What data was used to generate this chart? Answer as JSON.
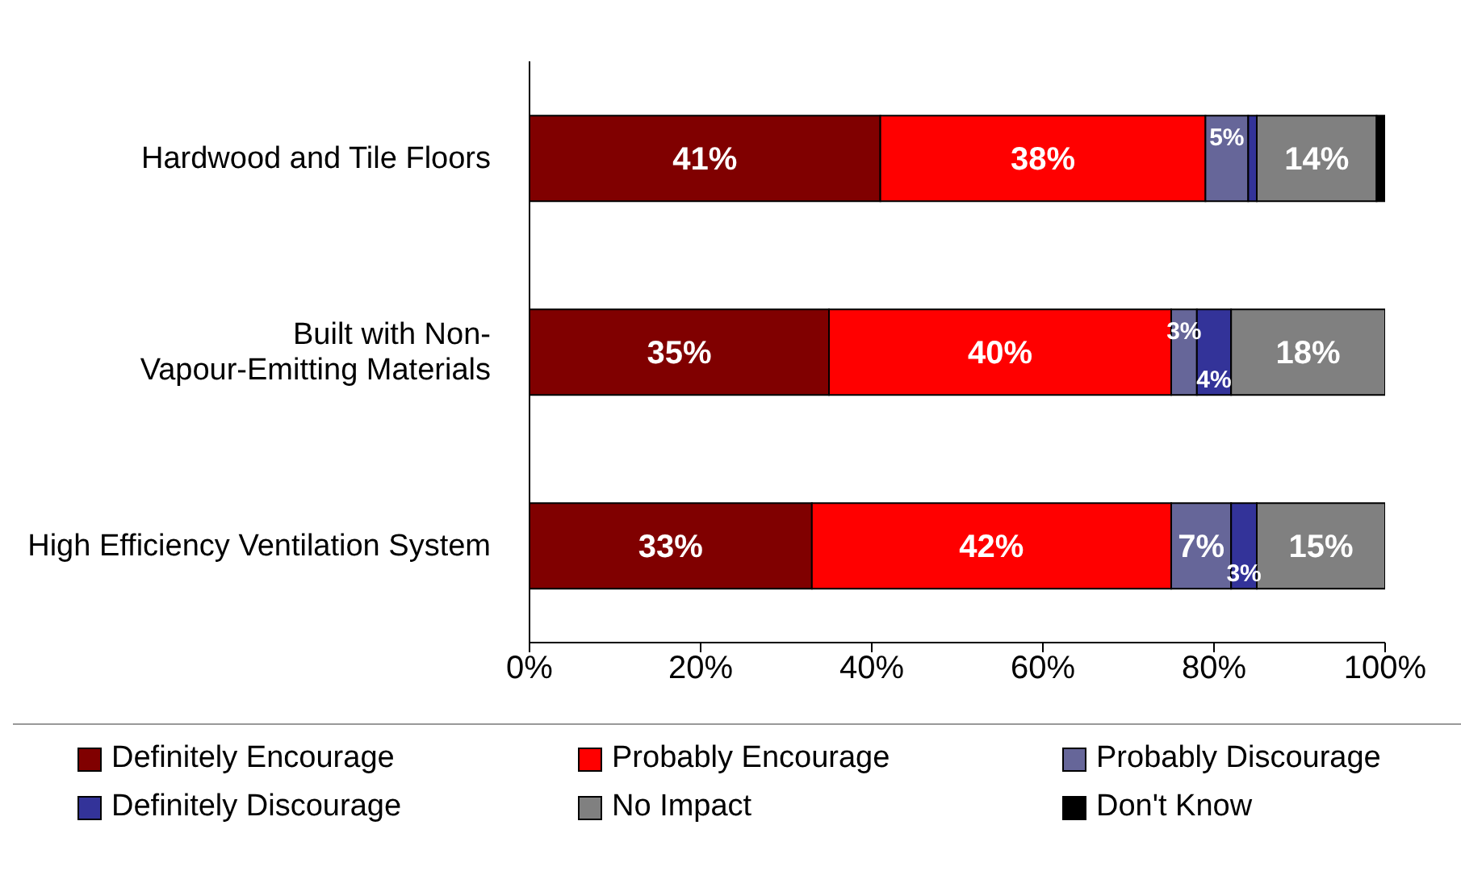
{
  "chart_data": {
    "type": "bar",
    "orientation": "horizontal",
    "stacked": true,
    "categories": [
      "Hardwood and Tile Floors",
      "Built with Non-Vapour-Emitting Materials",
      "High Efficiency Ventilation System"
    ],
    "series": [
      {
        "name": "Definitely Encourage",
        "color": "#800000",
        "values": [
          41,
          35,
          33
        ],
        "value_labels": [
          "41%",
          "35%",
          "33%"
        ]
      },
      {
        "name": "Probably Encourage",
        "color": "#ff0000",
        "values": [
          38,
          40,
          42
        ],
        "value_labels": [
          "38%",
          "40%",
          "42%"
        ]
      },
      {
        "name": "Probably Discourage",
        "color": "#666699",
        "values": [
          5,
          3,
          7
        ],
        "value_labels": [
          "5%",
          "3%",
          "7%"
        ]
      },
      {
        "name": "Definitely Discourage",
        "color": "#333399",
        "values": [
          1,
          4,
          3
        ],
        "value_labels": [
          null,
          "4%",
          "3%"
        ]
      },
      {
        "name": "No Impact",
        "color": "#808080",
        "values": [
          14,
          18,
          15
        ],
        "value_labels": [
          "14%",
          "18%",
          "15%"
        ]
      },
      {
        "name": "Don't Know",
        "color": "#000000",
        "values": [
          1,
          0,
          0
        ],
        "value_labels": [
          null,
          null,
          null
        ]
      }
    ],
    "xlim": [
      0,
      100
    ],
    "xticks": [
      {
        "value": 0,
        "label": "0%"
      },
      {
        "value": 20,
        "label": "20%"
      },
      {
        "value": 40,
        "label": "40%"
      },
      {
        "value": 60,
        "label": "60%"
      },
      {
        "value": 80,
        "label": "80%"
      },
      {
        "value": 100,
        "label": "100%"
      }
    ],
    "grid": false,
    "legend": "bottom"
  }
}
